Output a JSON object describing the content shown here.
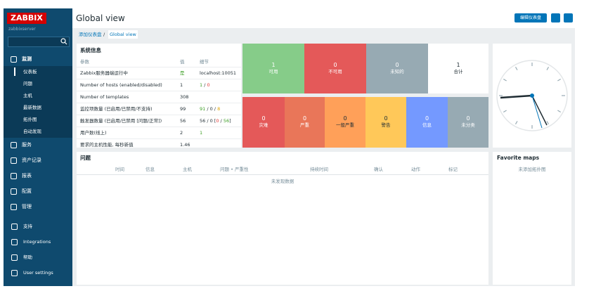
{
  "sidebar": {
    "logo": "ZABBIX",
    "server": "zabbixserver",
    "menu": [
      {
        "label": "监测",
        "items": [
          "仪表板",
          "问题",
          "主机",
          "最新数据",
          "拓扑图",
          "自动发现"
        ]
      },
      {
        "label": "服务"
      },
      {
        "label": "资产记录"
      },
      {
        "label": "报表"
      },
      {
        "label": "配置"
      },
      {
        "label": "管理"
      }
    ],
    "bottom": [
      "支持",
      "Integrations",
      "帮助",
      "User settings"
    ]
  },
  "header": {
    "title": "Global view",
    "edit_button": "编辑仪表盘"
  },
  "breadcrumb": {
    "items": [
      "添加仪表盘",
      "Global view"
    ],
    "separator": "/"
  },
  "system_info": {
    "title": "系统信息",
    "columns": [
      "参数",
      "值",
      "细节"
    ],
    "rows": [
      {
        "param": "Zabbix服务器端运行中",
        "value": "是",
        "value_color": "#3a9d23",
        "detail": [
          {
            "text": "localhost:10051",
            "color": "#1f2c33"
          }
        ]
      },
      {
        "param": "Number of hosts (enabled/disabled)",
        "value": "1",
        "detail": [
          {
            "text": "1",
            "color": "#3a9d23"
          },
          {
            "text": " / ",
            "color": "#1f2c33"
          },
          {
            "text": "0",
            "color": "#e33734"
          }
        ]
      },
      {
        "param": "Number of templates",
        "value": "308",
        "detail": []
      },
      {
        "param": "监控项数量 (已启用/已禁用/不支持)",
        "value": "99",
        "detail": [
          {
            "text": "91",
            "color": "#3a9d23"
          },
          {
            "text": " / 0 / ",
            "color": "#1f2c33"
          },
          {
            "text": "8",
            "color": "#e0a400"
          }
        ]
      },
      {
        "param": "触发器数量 (已启用/已禁用 [问题/正常])",
        "value": "56",
        "detail": [
          {
            "text": "56 / 0 [",
            "color": "#1f2c33"
          },
          {
            "text": "0",
            "color": "#e33734"
          },
          {
            "text": " / ",
            "color": "#1f2c33"
          },
          {
            "text": "56",
            "color": "#3a9d23"
          },
          {
            "text": "]",
            "color": "#1f2c33"
          }
        ]
      },
      {
        "param": "用户数(线上)",
        "value": "2",
        "detail": [
          {
            "text": "1",
            "color": "#3a9d23"
          }
        ]
      },
      {
        "param": "要求的主机性能, 每秒新值",
        "value": "1.46",
        "detail": []
      }
    ]
  },
  "host_availability": [
    {
      "count": "1",
      "label": "可用",
      "color": "#86cc89"
    },
    {
      "count": "0",
      "label": "不可用",
      "color": "#e45959"
    },
    {
      "count": "0",
      "label": "未知的",
      "color": "#97aab3"
    },
    {
      "count": "1",
      "label": "合计",
      "color": "#ffffff"
    }
  ],
  "problems_by_severity": [
    {
      "count": "0",
      "label": "灾难",
      "color": "#e45959"
    },
    {
      "count": "0",
      "label": "严重",
      "color": "#e97659"
    },
    {
      "count": "0",
      "label": "一般严重",
      "color": "#ffa059"
    },
    {
      "count": "0",
      "label": "警告",
      "color": "#ffc859"
    },
    {
      "count": "0",
      "label": "信息",
      "color": "#7499ff"
    },
    {
      "count": "0",
      "label": "未分类",
      "color": "#97aab3"
    }
  ],
  "problems": {
    "title": "问题",
    "columns": [
      "时间",
      "信息",
      "主机",
      "问题 • 严重性",
      "持续时间",
      "确认",
      "动作",
      "标记"
    ],
    "empty": "未发现数据"
  },
  "favorite_maps": {
    "title": "Favorite maps",
    "empty": "未添加拓扑图"
  }
}
